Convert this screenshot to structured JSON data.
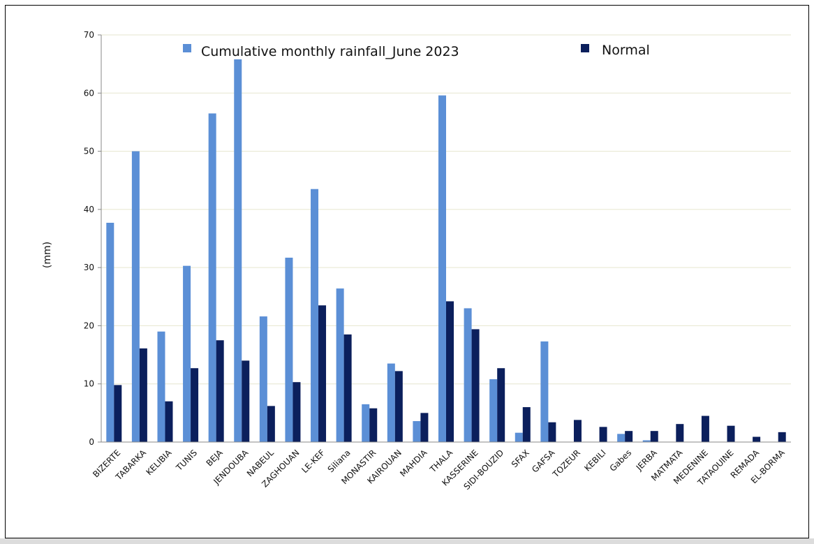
{
  "chart_data": {
    "type": "bar",
    "ylabel": "(mm)",
    "xlabel": "",
    "ylim": [
      0,
      70
    ],
    "yticks": [
      0,
      10,
      20,
      30,
      40,
      50,
      60,
      70
    ],
    "grid": true,
    "legend_position": "top",
    "categories": [
      "BIZERTE",
      "TABARKA",
      "KELIBIA",
      "TUNIS",
      "BEJA",
      "JENDOUBA",
      "NABEUL",
      "ZAGHOUAN",
      "LE-KEF",
      "Siliana",
      "MONASTIR",
      "KAIROUAN",
      "MAHDIA",
      "THALA",
      "KASSERINE",
      "SIDI-BOUZID",
      "SFAX",
      "GAFSA",
      "TOZEUR",
      "KEBILI",
      "Gabes",
      "JERBA",
      "MATMATA",
      "MEDENINE",
      "TATAOUINE",
      "REMADA",
      "EL-BORMA"
    ],
    "series": [
      {
        "name": "Cumulative monthly rainfall_June 2023",
        "color": "#5b8fd6",
        "values": [
          37.7,
          50.0,
          19.0,
          30.3,
          56.5,
          65.8,
          21.6,
          31.7,
          43.5,
          26.4,
          6.5,
          13.5,
          3.6,
          59.6,
          23.0,
          10.8,
          1.6,
          17.3,
          0,
          0,
          1.4,
          0.3,
          0,
          0,
          0,
          0,
          0
        ]
      },
      {
        "name": "Normal",
        "color": "#0b1f5c",
        "values": [
          9.8,
          16.1,
          7.0,
          12.7,
          17.5,
          14.0,
          6.2,
          10.3,
          23.5,
          18.5,
          5.8,
          12.2,
          5.0,
          24.2,
          19.4,
          12.7,
          6.0,
          3.4,
          3.8,
          2.6,
          1.9,
          1.9,
          3.1,
          4.5,
          2.8,
          0.9,
          1.7
        ]
      }
    ]
  }
}
